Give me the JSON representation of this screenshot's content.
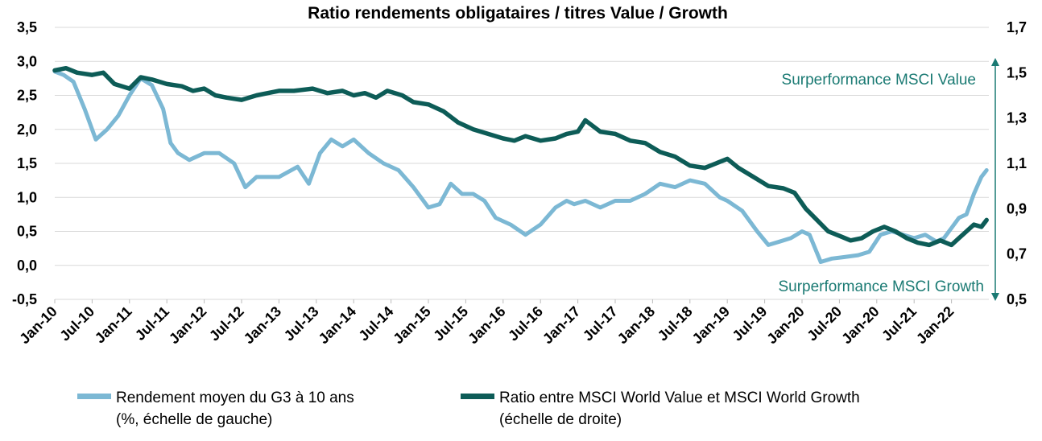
{
  "chart_data": {
    "type": "line",
    "title": "Ratio rendements obligataires / titres Value / Growth",
    "x_categories": [
      "Jan-10",
      "Jul-10",
      "Jan-11",
      "Jul-11",
      "Jan-12",
      "Jul-12",
      "Jan-13",
      "Jul-13",
      "Jan-14",
      "Jul-14",
      "Jan-15",
      "Jul-15",
      "Jan-16",
      "Jul-16",
      "Jan-17",
      "Jul-17",
      "Jan-18",
      "Jul-18",
      "Jan-19",
      "Jul-19",
      "Jan-20",
      "Jul-20",
      "Jan-20",
      "Jul-21",
      "Jan-22"
    ],
    "y_left": {
      "range": [
        -0.5,
        3.5
      ],
      "ticks": [
        "3,5",
        "3,0",
        "2,5",
        "2,0",
        "1,5",
        "1,0",
        "0,5",
        "0,0",
        "-0,5"
      ]
    },
    "y_right": {
      "range": [
        0.5,
        1.7
      ],
      "ticks": [
        "1,7",
        "1,5",
        "1,3",
        "1,1",
        "0,9",
        "0,7",
        "0,5"
      ]
    },
    "grid": "horizontal",
    "legend_position": "bottom",
    "colors": {
      "yield": "#7cb8d4",
      "ratio": "#0d5c57",
      "annotation": "#1a7a73"
    },
    "annotations": {
      "top": "Surperformance MSCI Value",
      "bottom": "Surperformance MSCI Growth"
    },
    "series": [
      {
        "name": "Rendement moyen du G3 à 10 ans",
        "name_line2": "(%, échelle de gauche)",
        "axis": "left",
        "x": [
          2010.0,
          2010.12,
          2010.25,
          2010.4,
          2010.55,
          2010.7,
          2010.85,
          2011.0,
          2011.15,
          2011.3,
          2011.45,
          2011.55,
          2011.65,
          2011.8,
          2012.0,
          2012.2,
          2012.4,
          2012.55,
          2012.7,
          2012.85,
          2013.0,
          2013.25,
          2013.4,
          2013.55,
          2013.7,
          2013.85,
          2014.0,
          2014.2,
          2014.4,
          2014.6,
          2014.8,
          2015.0,
          2015.15,
          2015.3,
          2015.45,
          2015.6,
          2015.75,
          2015.9,
          2016.1,
          2016.3,
          2016.5,
          2016.7,
          2016.85,
          2016.95,
          2017.1,
          2017.3,
          2017.5,
          2017.7,
          2017.9,
          2018.1,
          2018.3,
          2018.5,
          2018.7,
          2018.9,
          2019.0,
          2019.2,
          2019.4,
          2019.55,
          2019.7,
          2019.85,
          2020.0,
          2020.1,
          2020.25,
          2020.4,
          2020.55,
          2020.75,
          2020.9,
          2021.05,
          2021.2,
          2021.35,
          2021.5,
          2021.65,
          2021.8,
          2021.9,
          2022.0,
          2022.1,
          2022.2,
          2022.3,
          2022.4,
          2022.47
        ],
        "y": [
          2.85,
          2.8,
          2.7,
          2.3,
          1.85,
          2.0,
          2.2,
          2.5,
          2.75,
          2.65,
          2.3,
          1.8,
          1.65,
          1.55,
          1.65,
          1.65,
          1.5,
          1.15,
          1.3,
          1.3,
          1.3,
          1.45,
          1.2,
          1.65,
          1.85,
          1.75,
          1.85,
          1.65,
          1.5,
          1.4,
          1.15,
          0.85,
          0.9,
          1.2,
          1.05,
          1.05,
          0.95,
          0.7,
          0.6,
          0.45,
          0.6,
          0.85,
          0.95,
          0.9,
          0.95,
          0.85,
          0.95,
          0.95,
          1.05,
          1.2,
          1.15,
          1.25,
          1.2,
          1.0,
          0.95,
          0.8,
          0.5,
          0.3,
          0.35,
          0.4,
          0.5,
          0.45,
          0.05,
          0.1,
          0.12,
          0.15,
          0.2,
          0.45,
          0.5,
          0.45,
          0.4,
          0.45,
          0.35,
          0.4,
          0.55,
          0.7,
          0.75,
          1.05,
          1.3,
          1.4
        ]
      },
      {
        "name": "Ratio entre MSCI World Value et MSCI World Growth",
        "name_line2": "(échelle de droite)",
        "axis": "right",
        "x": [
          2010.0,
          2010.15,
          2010.3,
          2010.5,
          2010.65,
          2010.8,
          2011.0,
          2011.15,
          2011.3,
          2011.5,
          2011.7,
          2011.85,
          2012.0,
          2012.15,
          2012.3,
          2012.5,
          2012.7,
          2012.85,
          2013.0,
          2013.2,
          2013.45,
          2013.65,
          2013.85,
          2014.0,
          2014.15,
          2014.3,
          2014.45,
          2014.65,
          2014.8,
          2015.0,
          2015.2,
          2015.4,
          2015.6,
          2015.8,
          2016.0,
          2016.15,
          2016.3,
          2016.5,
          2016.7,
          2016.85,
          2017.0,
          2017.1,
          2017.3,
          2017.5,
          2017.7,
          2017.9,
          2018.1,
          2018.3,
          2018.5,
          2018.7,
          2018.85,
          2019.0,
          2019.15,
          2019.35,
          2019.55,
          2019.75,
          2019.9,
          2020.05,
          2020.2,
          2020.35,
          2020.5,
          2020.65,
          2020.8,
          2020.95,
          2021.1,
          2021.25,
          2021.4,
          2021.55,
          2021.7,
          2021.85,
          2022.0,
          2022.1,
          2022.2,
          2022.3,
          2022.4,
          2022.47
        ],
        "y": [
          1.51,
          1.52,
          1.5,
          1.49,
          1.5,
          1.45,
          1.43,
          1.48,
          1.47,
          1.45,
          1.44,
          1.42,
          1.43,
          1.4,
          1.39,
          1.38,
          1.4,
          1.41,
          1.42,
          1.42,
          1.43,
          1.41,
          1.42,
          1.4,
          1.41,
          1.39,
          1.42,
          1.4,
          1.37,
          1.36,
          1.33,
          1.28,
          1.25,
          1.23,
          1.21,
          1.2,
          1.22,
          1.2,
          1.21,
          1.23,
          1.24,
          1.29,
          1.24,
          1.23,
          1.2,
          1.19,
          1.15,
          1.13,
          1.09,
          1.08,
          1.1,
          1.12,
          1.08,
          1.04,
          1.0,
          0.99,
          0.97,
          0.9,
          0.85,
          0.8,
          0.78,
          0.76,
          0.77,
          0.8,
          0.82,
          0.8,
          0.77,
          0.75,
          0.74,
          0.76,
          0.74,
          0.77,
          0.8,
          0.83,
          0.82,
          0.85
        ]
      }
    ]
  }
}
